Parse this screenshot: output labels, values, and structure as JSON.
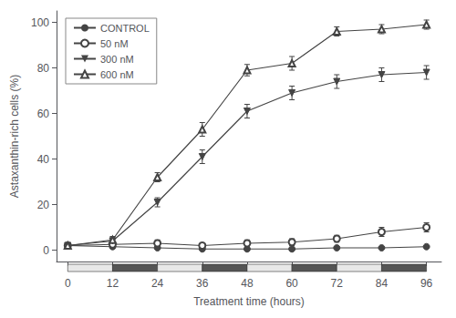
{
  "chart_data": {
    "type": "line",
    "xlabel": "Treatment time (hours)",
    "ylabel": "Astaxanthin-rich cells (%)",
    "x": [
      0,
      12,
      24,
      36,
      48,
      60,
      72,
      84,
      96
    ],
    "series": [
      {
        "name": "CONTROL",
        "color": "#444444",
        "marker": "circle",
        "values": [
          2.0,
          1.5,
          1.0,
          0.5,
          0.5,
          0.5,
          1.0,
          1.0,
          1.5
        ],
        "errors": [
          0.5,
          0.8,
          0.5,
          0.3,
          0.3,
          0.5,
          0.5,
          0.5,
          0.5
        ]
      },
      {
        "name": "50 nM",
        "color": "#444444",
        "marker": "open_circle",
        "values": [
          2.0,
          2.5,
          3.0,
          2.0,
          3.0,
          3.5,
          5.0,
          8.0,
          10.0
        ],
        "errors": [
          0.5,
          1.5,
          1.5,
          0.8,
          1.5,
          1.5,
          1.5,
          2.0,
          2.0
        ]
      },
      {
        "name": "300 nM",
        "color": "#444444",
        "marker": "triangle_down",
        "values": [
          2.0,
          4.0,
          21.0,
          41.0,
          61.0,
          69.0,
          74.0,
          77.0,
          78.0
        ],
        "errors": [
          0.5,
          1.5,
          2.0,
          3.0,
          3.0,
          3.0,
          3.0,
          3.0,
          3.0
        ]
      },
      {
        "name": "600 nM",
        "color": "#444444",
        "marker": "open_triangle",
        "values": [
          2.0,
          4.5,
          32.0,
          53.0,
          79.0,
          82.0,
          96.0,
          97.0,
          99.0
        ],
        "errors": [
          0.5,
          1.5,
          2.0,
          3.0,
          2.5,
          3.0,
          2.0,
          2.0,
          2.0
        ]
      }
    ],
    "xlim": [
      -3,
      100
    ],
    "xticks": [
      0,
      12,
      24,
      36,
      48,
      60,
      72,
      84,
      96
    ],
    "ylim": [
      -5,
      105
    ],
    "yticks": [
      0,
      20,
      40,
      60,
      80,
      100
    ],
    "grid": false,
    "legend": "upper left",
    "periods": [
      {
        "start": 0,
        "end": 12,
        "color": "#e8e8e8"
      },
      {
        "start": 12,
        "end": 24,
        "color": "#555555"
      },
      {
        "start": 24,
        "end": 36,
        "color": "#e8e8e8"
      },
      {
        "start": 36,
        "end": 48,
        "color": "#555555"
      },
      {
        "start": 48,
        "end": 60,
        "color": "#e8e8e8"
      },
      {
        "start": 60,
        "end": 72,
        "color": "#555555"
      },
      {
        "start": 72,
        "end": 84,
        "color": "#e8e8e8"
      },
      {
        "start": 84,
        "end": 96,
        "color": "#555555"
      }
    ]
  }
}
